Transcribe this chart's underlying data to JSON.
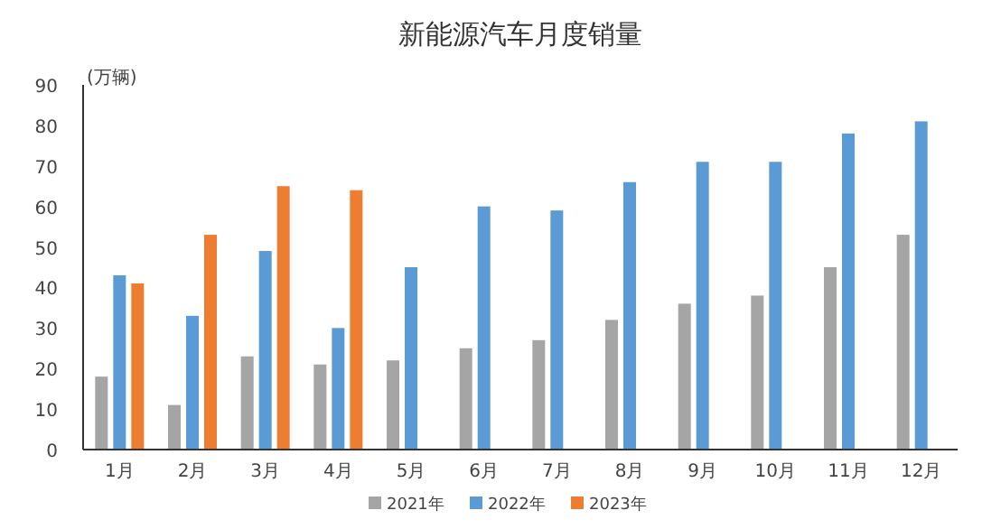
{
  "chart_data": {
    "type": "bar",
    "title": "新能源汽车月度销量",
    "ylabel": "(万辆)",
    "categories": [
      "1月",
      "2月",
      "3月",
      "4月",
      "5月",
      "6月",
      "7月",
      "8月",
      "9月",
      "10月",
      "11月",
      "12月"
    ],
    "series": [
      {
        "name": "2021年",
        "color": "#a5a5a5",
        "values": [
          18,
          11,
          23,
          21,
          22,
          25,
          27,
          32,
          36,
          38,
          45,
          53
        ]
      },
      {
        "name": "2022年",
        "color": "#5b9bd5",
        "values": [
          43,
          33,
          49,
          30,
          45,
          60,
          59,
          66,
          71,
          71,
          78,
          81
        ]
      },
      {
        "name": "2023年",
        "color": "#ed7d31",
        "values": [
          41,
          53,
          65,
          64,
          null,
          null,
          null,
          null,
          null,
          null,
          null,
          null
        ]
      }
    ],
    "ylim": [
      0,
      90
    ],
    "yticks": [
      0,
      10,
      20,
      30,
      40,
      50,
      60,
      70,
      80,
      90
    ],
    "grid": false,
    "legend": "bottom"
  }
}
